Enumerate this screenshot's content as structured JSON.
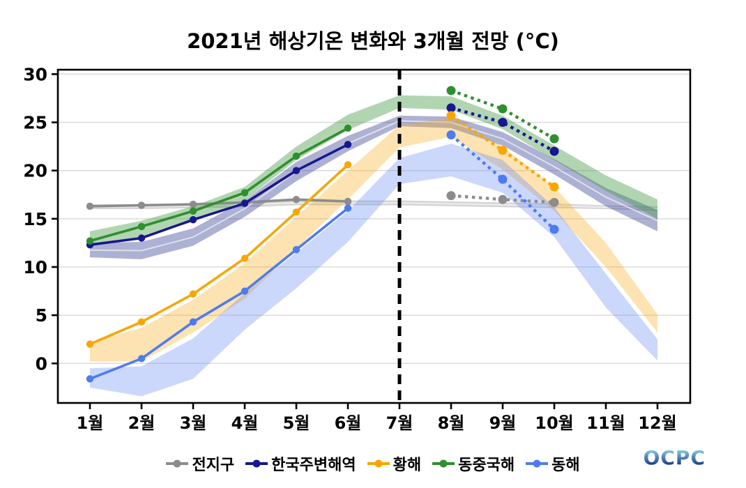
{
  "title": "2021년 해상기온 변화와 3개월 전망 (°C)",
  "logo_text": "OCPC",
  "logo_colors": {
    "top": "#8ccde9",
    "bottom": "#16337f"
  },
  "chart_data": {
    "type": "line",
    "title": "2021년 해상기온 변화와 3개월 전망 (°C)",
    "x_labels": [
      "1월",
      "2월",
      "3월",
      "4월",
      "5월",
      "6월",
      "7월",
      "8월",
      "9월",
      "10월",
      "11월",
      "12월"
    ],
    "y_ticks": [
      0,
      5,
      10,
      15,
      20,
      25,
      30
    ],
    "ylim": [
      -4.1,
      30.46
    ],
    "grid": "horizontal-only",
    "legend_position": "bottom",
    "divider_month_index": 6,
    "observed_month_indices": [
      0,
      1,
      2,
      3,
      4,
      5
    ],
    "forecast_month_indices": [
      7,
      8,
      9
    ],
    "series": [
      {
        "name": "전지구",
        "line_color": "#8c8c8c",
        "band_color": "rgba(150,150,150,0.40)",
        "band_mid_line": true,
        "observed": [
          16.3,
          16.4,
          16.5,
          16.7,
          17.0,
          16.8
        ],
        "forecast": [
          17.4,
          17.0,
          16.7
        ],
        "band_lower": [
          16.0,
          16.0,
          16.1,
          16.2,
          16.4,
          16.4,
          16.4,
          16.3,
          16.2,
          16.1,
          16.0,
          15.8
        ],
        "band_upper": [
          16.5,
          16.5,
          16.6,
          16.7,
          16.9,
          16.9,
          16.9,
          16.8,
          16.7,
          16.6,
          16.4,
          16.3
        ]
      },
      {
        "name": "한국주변해역",
        "line_color": "#17178f",
        "band_color": "rgba(60,70,150,0.42)",
        "band_mid_line": true,
        "observed": [
          12.3,
          13.0,
          14.9,
          16.6,
          20.0,
          22.7
        ],
        "forecast": [
          26.5,
          25.0,
          22.0
        ],
        "band_lower": [
          11.0,
          10.8,
          12.2,
          15.2,
          18.9,
          22.0,
          24.6,
          24.4,
          22.6,
          19.6,
          16.3,
          13.7
        ],
        "band_upper": [
          12.5,
          12.6,
          14.0,
          16.9,
          20.9,
          23.6,
          25.7,
          25.6,
          24.0,
          21.2,
          18.2,
          15.9
        ]
      },
      {
        "name": "황해",
        "line_color": "#f9a602",
        "band_color": "rgba(250,170,20,0.33)",
        "band_mid_line": false,
        "observed": [
          2.0,
          4.3,
          7.2,
          10.9,
          15.7,
          20.6
        ],
        "forecast": [
          25.7,
          22.1,
          18.3
        ],
        "band_lower": [
          0.2,
          0.2,
          3.2,
          6.7,
          11.9,
          17.0,
          22.4,
          23.5,
          20.1,
          15.8,
          10.0,
          3.2
        ],
        "band_upper": [
          2.2,
          3.7,
          6.6,
          10.4,
          15.2,
          20.0,
          24.7,
          25.5,
          22.5,
          18.3,
          12.5,
          5.1
        ]
      },
      {
        "name": "동중국해",
        "line_color": "#2e8f2e",
        "band_color": "rgba(70,155,70,0.42)",
        "band_mid_line": false,
        "observed": [
          12.7,
          14.2,
          15.8,
          17.7,
          21.5,
          24.4
        ],
        "forecast": [
          28.3,
          26.4,
          23.3
        ],
        "band_lower": [
          12.3,
          13.0,
          14.7,
          16.9,
          21.1,
          24.2,
          26.5,
          26.3,
          24.3,
          21.1,
          17.9,
          15.0
        ],
        "band_upper": [
          13.7,
          14.8,
          16.3,
          18.3,
          22.5,
          25.8,
          27.8,
          27.7,
          25.7,
          22.6,
          19.5,
          17.0
        ]
      },
      {
        "name": "동해",
        "line_color": "#4d7cf0",
        "band_color": "rgba(100,135,245,0.33)",
        "band_mid_line": false,
        "observed": [
          -1.6,
          0.5,
          4.3,
          7.5,
          11.8,
          16.1
        ],
        "forecast": [
          23.7,
          19.1,
          13.9
        ],
        "band_lower": [
          -2.5,
          -3.4,
          -1.6,
          3.5,
          7.8,
          12.6,
          18.6,
          19.4,
          17.7,
          13.1,
          5.8,
          0.3
        ],
        "band_upper": [
          -0.5,
          -0.3,
          2.6,
          7.3,
          11.5,
          15.8,
          21.3,
          22.8,
          21.1,
          16.2,
          9.3,
          2.5
        ]
      }
    ]
  }
}
